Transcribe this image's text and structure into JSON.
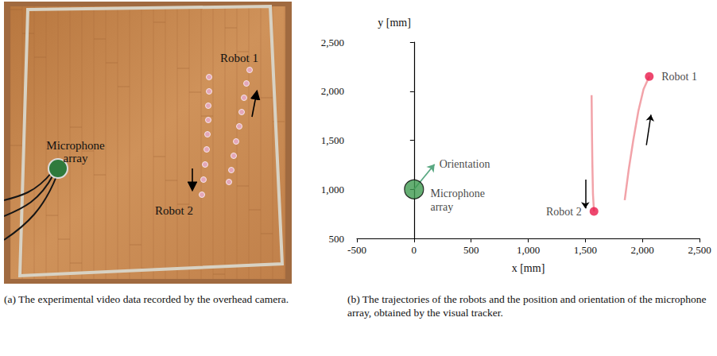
{
  "photo": {
    "labels": {
      "robot_1": "Robot 1",
      "robot_2": "Robot 2",
      "microphone_array": "Microphone array"
    }
  },
  "captions": {
    "a": "(a) The experimental video data recorded by the overhead camera.",
    "b": "(b) The trajectories of the robots and the position and orientation of the microphone array, obtained by the visual tracker."
  },
  "chart_data": {
    "type": "line",
    "xlabel": "x [mm]",
    "ylabel": "y [mm]",
    "xlim": [
      -500,
      2500
    ],
    "xticks": [
      -500,
      0,
      500,
      1000,
      1500,
      2000,
      2500
    ],
    "ylim": [
      500,
      2500
    ],
    "yticks": [
      500,
      1000,
      1500,
      2000,
      2500
    ],
    "grid": false,
    "series": [
      {
        "name": "Robot 1",
        "color": "#f2a3a9",
        "marker": "circle",
        "x": [
          1845,
          1880,
          1920,
          1965,
          2010,
          2060
        ],
        "values": [
          890,
          1200,
          1500,
          1800,
          2020,
          2150
        ]
      },
      {
        "name": "Robot 2",
        "color": "#f2a3a9",
        "marker": "circle",
        "x": [
          1555,
          1558,
          1562,
          1567,
          1576
        ],
        "values": [
          1960,
          1600,
          1250,
          950,
          775
        ]
      }
    ],
    "microphone_array": {
      "label": "Microphone array",
      "x": 0,
      "y": 1000,
      "color": "#3f9a50",
      "orientation": {
        "label": "Orientation",
        "x": 180,
        "y": 1255,
        "color": "#5aa882"
      }
    },
    "arrows": [
      {
        "x": [
          2035,
          2075
        ],
        "y": [
          1450,
          1760
        ]
      },
      {
        "x": [
          1500,
          1500
        ],
        "y": [
          1100,
          805
        ]
      }
    ]
  }
}
